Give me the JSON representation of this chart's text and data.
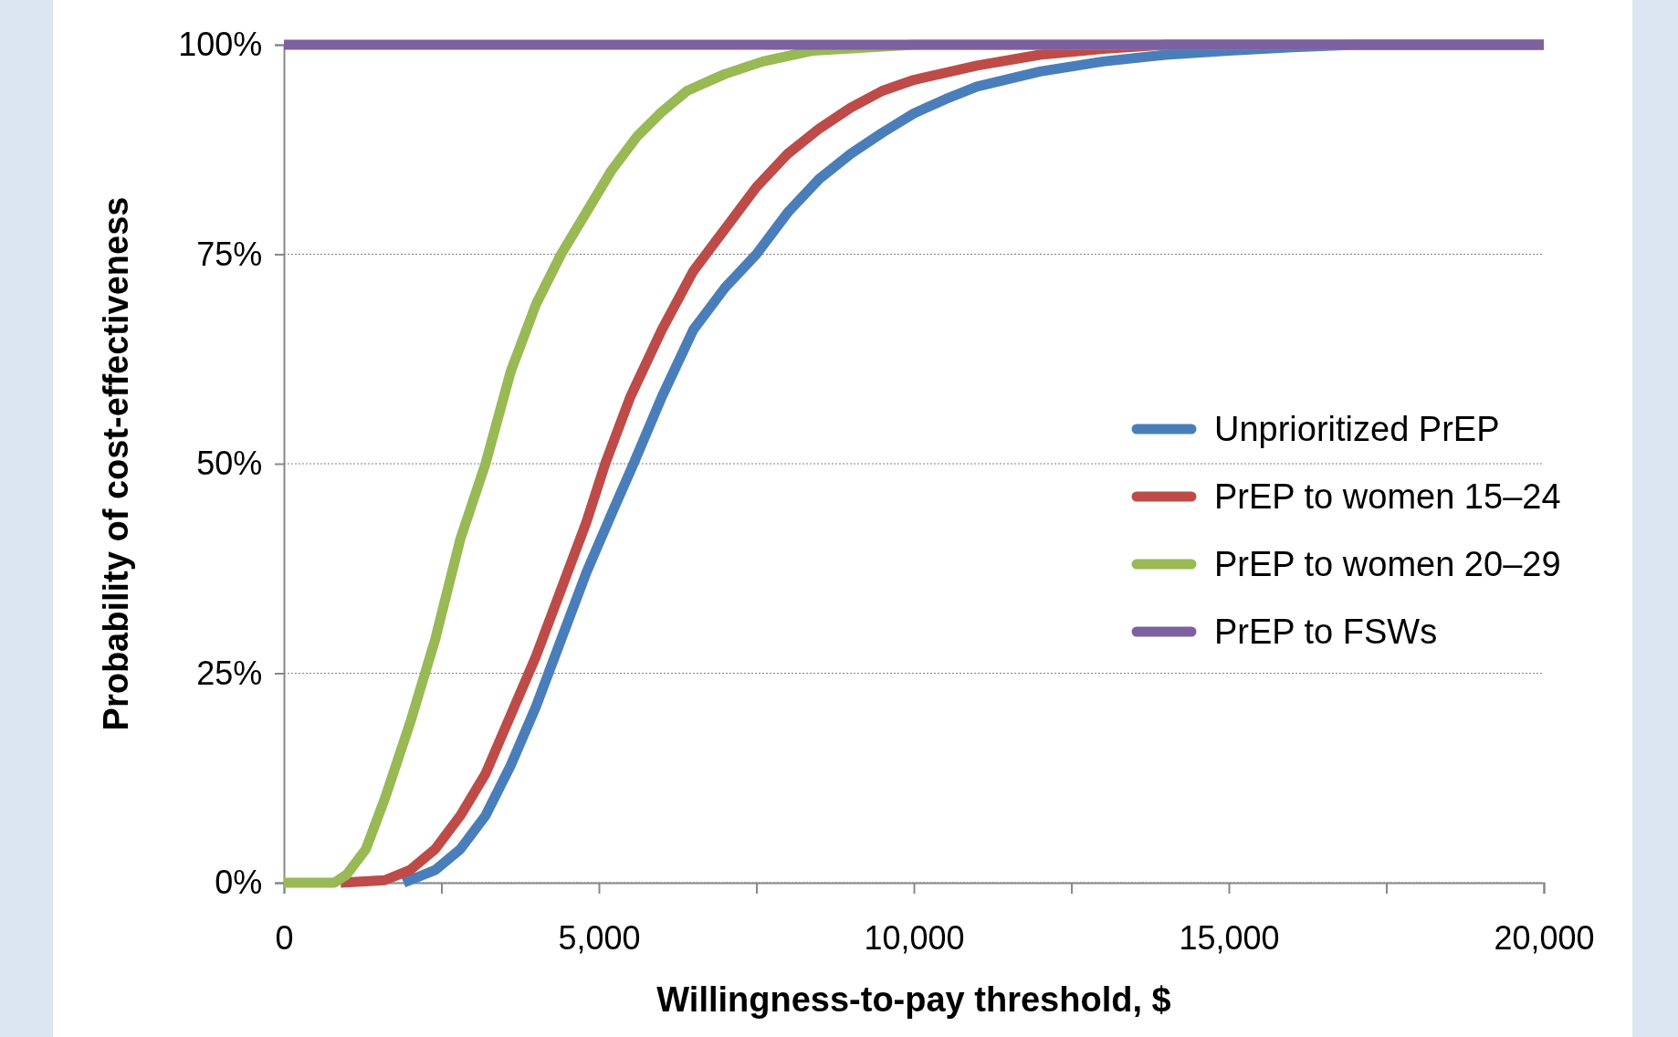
{
  "chart_data": {
    "type": "line",
    "xlabel": "Willingness-to-pay threshold, $",
    "ylabel": "Probability of cost-effectiveness",
    "xlim": [
      0,
      20000
    ],
    "xticks": [
      0,
      {
        "value": 2500,
        "label": null
      },
      {
        "value": 5000,
        "label": "5,000"
      },
      {
        "value": 7500,
        "label": null
      },
      {
        "value": 10000,
        "label": "10,000"
      },
      {
        "value": 12500,
        "label": null
      },
      {
        "value": 15000,
        "label": "15,000"
      },
      {
        "value": 17500,
        "label": null
      },
      {
        "value": 20000,
        "label": "20,000"
      }
    ],
    "ylim": [
      0,
      100
    ],
    "yticks": [
      {
        "value": 0,
        "label": "0%"
      },
      {
        "value": 25,
        "label": "25%"
      },
      {
        "value": 50,
        "label": "50%"
      },
      {
        "value": 75,
        "label": "75%"
      },
      {
        "value": 100,
        "label": "100%"
      }
    ],
    "grid": "y",
    "legend": "right",
    "marker": "none",
    "line_style": "solid",
    "series": [
      {
        "name": "Unprioritized PrEP",
        "color": "#4a7ebb",
        "x": [
          1900,
          2400,
          2800,
          3200,
          3600,
          4000,
          4400,
          4800,
          5200,
          5550,
          6000,
          6500,
          7000,
          7500,
          8000,
          8500,
          9000,
          9500,
          10000,
          10500,
          11000,
          12000,
          13000,
          14000,
          15000,
          16000,
          17000,
          20000
        ],
        "values": [
          0,
          1.5,
          4,
          8,
          14,
          21,
          29,
          37,
          44,
          50,
          58,
          66,
          71,
          75,
          80,
          84,
          87,
          89.5,
          91.8,
          93.5,
          95,
          96.8,
          98,
          98.8,
          99.3,
          99.7,
          100,
          100
        ]
      },
      {
        "name": "PrEP to women 15–24",
        "color": "#be4b48",
        "x": [
          900,
          1600,
          2000,
          2400,
          2800,
          3200,
          3600,
          4000,
          4400,
          4800,
          5100,
          5500,
          6000,
          6500,
          7000,
          7500,
          8000,
          8500,
          9000,
          9500,
          10000,
          11000,
          12000,
          13000,
          14000,
          20000
        ],
        "values": [
          0,
          0.3,
          1.5,
          4,
          8,
          13,
          20,
          27,
          35,
          43,
          50,
          58,
          66,
          73,
          78,
          83,
          87,
          90,
          92.5,
          94.5,
          95.8,
          97.5,
          98.8,
          99.5,
          100,
          100
        ]
      },
      {
        "name": "PrEP to women 20–29",
        "color": "#98b954",
        "x": [
          0,
          800,
          1000,
          1300,
          1600,
          2000,
          2400,
          2800,
          3200,
          3600,
          4000,
          4400,
          4800,
          5200,
          5600,
          6000,
          6400,
          7000,
          7600,
          8400,
          10000,
          20000
        ],
        "values": [
          0,
          0,
          1,
          4,
          10,
          19,
          29,
          41,
          50,
          61,
          69,
          75,
          80,
          85,
          89,
          92,
          94.5,
          96.5,
          98,
          99.3,
          100,
          100
        ]
      },
      {
        "name": "PrEP to FSWs",
        "color": "#7d60a0",
        "x": [
          0,
          20000
        ],
        "values": [
          100,
          100
        ]
      }
    ]
  }
}
